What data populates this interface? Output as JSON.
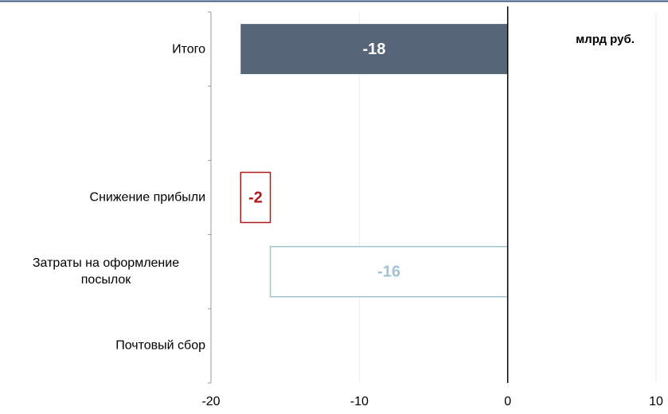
{
  "chart_data": {
    "type": "waterfall",
    "annotation": "млрд руб.",
    "categories": [
      "Итого",
      null,
      "Снижение прибыли",
      "Затраты на оформление посылок",
      "Почтовый сбор"
    ],
    "values": [
      -18,
      null,
      -2,
      -16,
      null
    ],
    "colors": [
      "#566577",
      null,
      "#b0191e",
      "#a3c3d3",
      null
    ],
    "styles": [
      "total",
      null,
      "outline",
      "outline",
      null
    ],
    "xlim": [
      -20,
      10
    ],
    "xticks": [
      -20,
      -10,
      0,
      10
    ],
    "grid": true
  }
}
